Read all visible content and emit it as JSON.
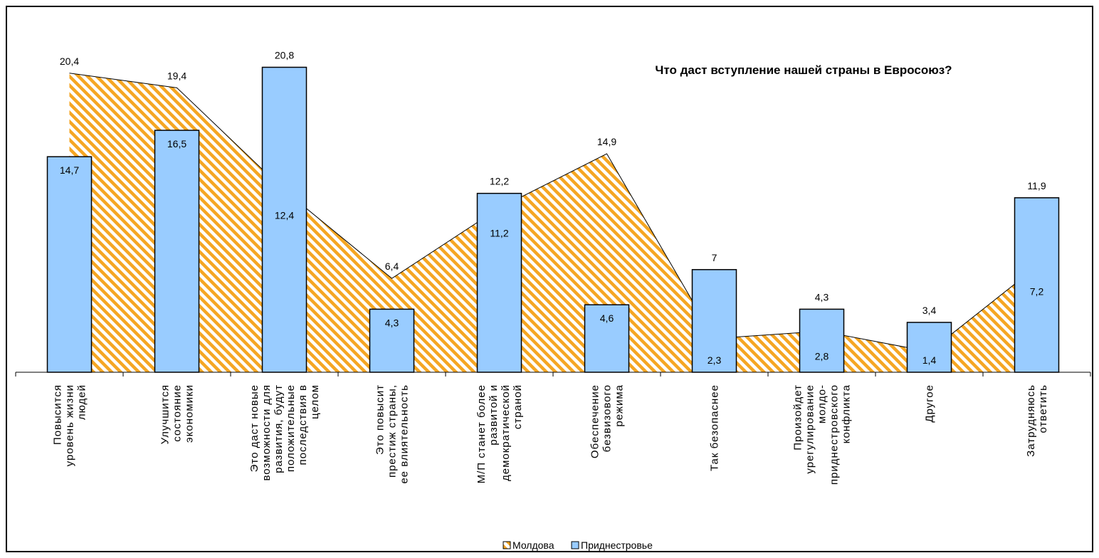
{
  "chart_data": {
    "type": "bar",
    "title": "Что даст вступление нашей страны в Евросоюз?",
    "categories": [
      [
        "Повысится",
        "уровень жизни",
        "людей"
      ],
      [
        "Улучшится",
        "состояние",
        "экономики"
      ],
      [
        "Это даст новые",
        "возможности для",
        "развития, будут",
        "положительные",
        "последствия в",
        "целом"
      ],
      [
        "Это повысит",
        "престиж страны,",
        "ее влиятельность"
      ],
      [
        "М/П станет более",
        "развитой и",
        "демократической",
        "страной"
      ],
      [
        "Обеспечение",
        "безвизового",
        "режима"
      ],
      [
        "Так безопаснее"
      ],
      [
        "Произойдет",
        "урегулирование",
        "молдо-",
        "приднестровского",
        "конфликта"
      ],
      [
        "Другое"
      ],
      [
        "Затрудняюсь",
        "ответить"
      ]
    ],
    "series": [
      {
        "name": "Молдова",
        "type": "area",
        "color": "#f5a623",
        "values": [
          20.4,
          19.4,
          12.4,
          6.4,
          11.2,
          14.9,
          2.3,
          2.8,
          1.4,
          7.2
        ]
      },
      {
        "name": "Приднестровье",
        "type": "bar",
        "color": "#99ccff",
        "values": [
          14.7,
          16.5,
          20.8,
          4.3,
          12.2,
          4.6,
          7,
          4.3,
          3.4,
          11.9
        ]
      }
    ],
    "ylim": [
      0,
      22
    ],
    "grid": false,
    "legend": "bottom"
  }
}
